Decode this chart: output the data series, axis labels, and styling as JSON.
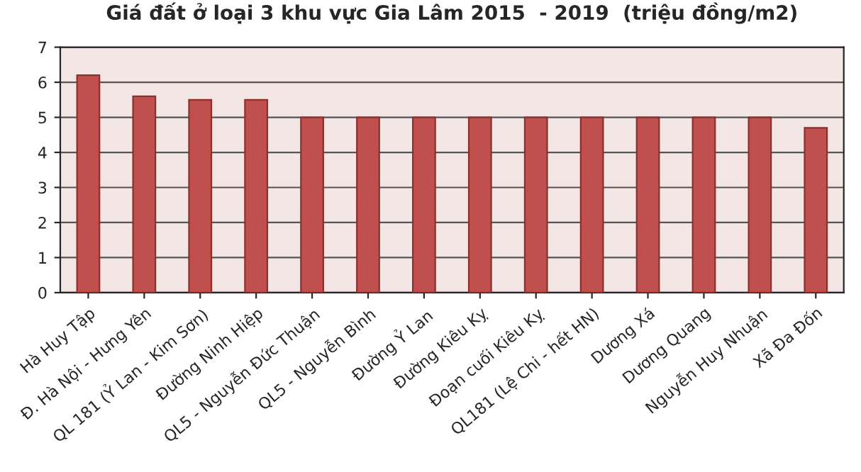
{
  "chart_data": {
    "type": "bar",
    "title": "Giá đất ở loại 3 khu vực Gia Lâm 2015  - 2019  (triệu đồng/m2)",
    "categories": [
      "Hà Huy Tập",
      "Đ. Hà Nội - Hưng Yên",
      "QL 181 (Ỷ Lan - Kim Sơn)",
      "Đường Ninh Hiệp",
      "QL5 - Nguyễn Đức Thuận",
      "QL5 - Nguyễn Bình",
      "Đường Ỷ Lan",
      "Đường Kiêu Kỵ",
      "Đoạn cuối Kiêu Kỵ",
      "QL181 (Lệ Chi - hết HN)",
      "Dương Xá",
      "Dương Quang",
      "Nguyễn Huy Nhuận",
      "Xã Đa Đốn"
    ],
    "values": [
      6.2,
      5.6,
      5.5,
      5.5,
      5.0,
      5.0,
      5.0,
      5.0,
      5.0,
      5.0,
      5.0,
      5.0,
      5.0,
      4.7
    ],
    "color": "#c0504d",
    "ylim": [
      0,
      7
    ],
    "yticks": [
      0,
      1,
      2,
      3,
      4,
      5,
      6,
      7
    ],
    "grid": "y"
  }
}
